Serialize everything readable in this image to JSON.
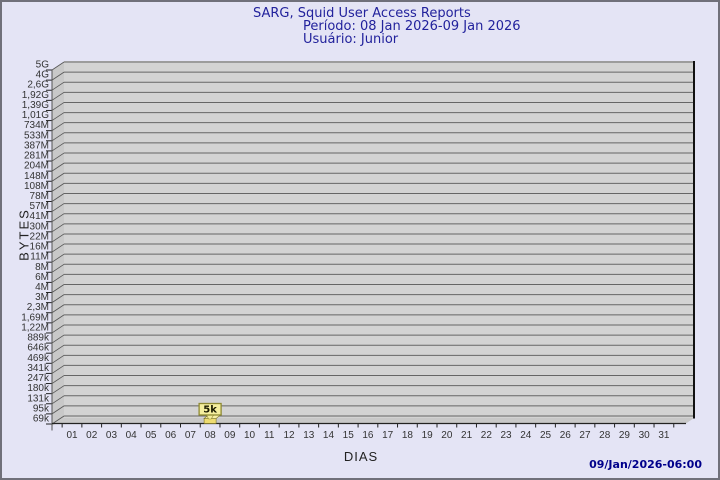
{
  "header": {
    "title": "SARG, Squid User Access Reports",
    "period": "Período: 08 Jan 2026-09 Jan 2026",
    "user": "Usuário: Junior"
  },
  "footer": {
    "timestamp": "09/Jan/2026-06:00"
  },
  "chart_data": {
    "type": "bar",
    "title": "SARG, Squid User Access Reports",
    "subtitle_period": "Período: 08 Jan 2026-09 Jan 2026",
    "subtitle_user": "Usuário: Junior",
    "xlabel": "DIAS",
    "ylabel": "BYTES",
    "x_categories": [
      "01",
      "02",
      "03",
      "04",
      "05",
      "06",
      "07",
      "08",
      "09",
      "10",
      "11",
      "12",
      "13",
      "14",
      "15",
      "16",
      "17",
      "18",
      "19",
      "20",
      "21",
      "22",
      "23",
      "24",
      "25",
      "26",
      "27",
      "28",
      "29",
      "30",
      "31"
    ],
    "y_tick_labels": [
      "5G",
      "4G",
      "2,6G",
      "1,92G",
      "1,39G",
      "1,01G",
      "734M",
      "533M",
      "387M",
      "281M",
      "204M",
      "148M",
      "108M",
      "78M",
      "57M",
      "41M",
      "30M",
      "22M",
      "16M",
      "11M",
      "8M",
      "6M",
      "4M",
      "3M",
      "2,3M",
      "1,69M",
      "1,22M",
      "889k",
      "646k",
      "469k",
      "341k",
      "247k",
      "180k",
      "131k",
      "95k",
      "69k"
    ],
    "bars": [
      {
        "day": "08",
        "value_label": "5k",
        "value_bytes_approx": 5000
      }
    ],
    "layout_hints": {
      "grid": "horizontal-only",
      "style_3d": true,
      "legend": "none",
      "y_axis_style": "nonlinear gdchart tick ladder from 69k to 5G"
    }
  },
  "colors": {
    "page_background": "#e4e4f5",
    "outer_border": "#70707a",
    "title_text": "#22229c",
    "panel_fill": "#d3d3d3",
    "wall_fill": "#c8c8c8",
    "gridline": "#666666",
    "axis_line": "#222222",
    "panel_right_edge": "#111111",
    "tick_text": "#333333",
    "bar_fill": "#eedc72",
    "bar_top_fill": "#f7efa6",
    "bar_edge": "#7a7224",
    "flag_fill": "#f4ee9e",
    "flag_border": "#8f8a33",
    "flag_text": "#1a1a00",
    "timestamp_text": "#00008b"
  }
}
